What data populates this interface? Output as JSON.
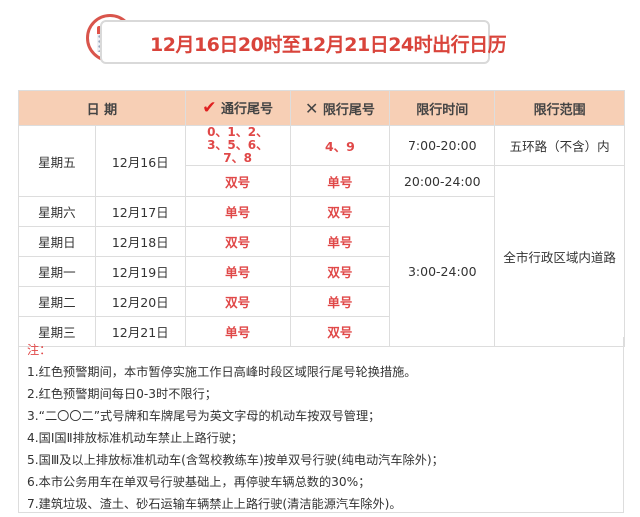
{
  "title": "12月16日20时至12月21日24时出行日历",
  "headers": {
    "date": "日 期",
    "allowed": "通行尾号",
    "restricted": "限行尾号",
    "time": "限行时间",
    "range": "限行范围"
  },
  "icons": {
    "allowed": "check-icon",
    "restricted": "x-icon"
  },
  "rows": [
    {
      "weekday": "星期五",
      "date": "12月16日",
      "allowed": "0、1、2、3、5、6、7、8",
      "restricted": "4、9",
      "time": "7:00-20:00",
      "range": "五环路（不含）内"
    },
    {
      "allowed": "双号",
      "restricted": "单号",
      "time": "20:00-24:00"
    },
    {
      "weekday": "星期六",
      "date": "12月17日",
      "allowed": "单号",
      "restricted": "双号"
    },
    {
      "weekday": "星期日",
      "date": "12月18日",
      "allowed": "双号",
      "restricted": "单号"
    },
    {
      "weekday": "星期一",
      "date": "12月19日",
      "allowed": "单号",
      "restricted": "双号"
    },
    {
      "weekday": "星期二",
      "date": "12月20日",
      "allowed": "双号",
      "restricted": "单号"
    },
    {
      "weekday": "星期三",
      "date": "12月21日",
      "allowed": "单号",
      "restricted": "双号"
    }
  ],
  "time_rest": "3:00-24:00",
  "range_rest": "全市行政区域内道路",
  "notes_heading": "注：",
  "notes": [
    "1.红色预警期间，本市暂停实施工作日高峰时段区域限行尾号轮换措施。",
    "2.红色预警期间每日0-3时不限行；",
    "3.“二〇〇二”式号牌和车牌尾号为英文字母的机动车按双号管理；",
    "4.国Ⅰ国Ⅱ排放标准机动车禁止上路行驶；",
    "5.国Ⅲ及以上排放标准机动车(含驾校教练车)按单双号行驶(纯电动汽车除外)；",
    "6.本市公务用车在单双号行驶基础上，再停驶车辆总数的30%；",
    "7.建筑垃圾、渣土、砂石运输车辆禁止上路行驶(清洁能源汽车除外)。"
  ],
  "colors": {
    "accent": "#e04848",
    "header_bg": "#f7cfb5"
  }
}
